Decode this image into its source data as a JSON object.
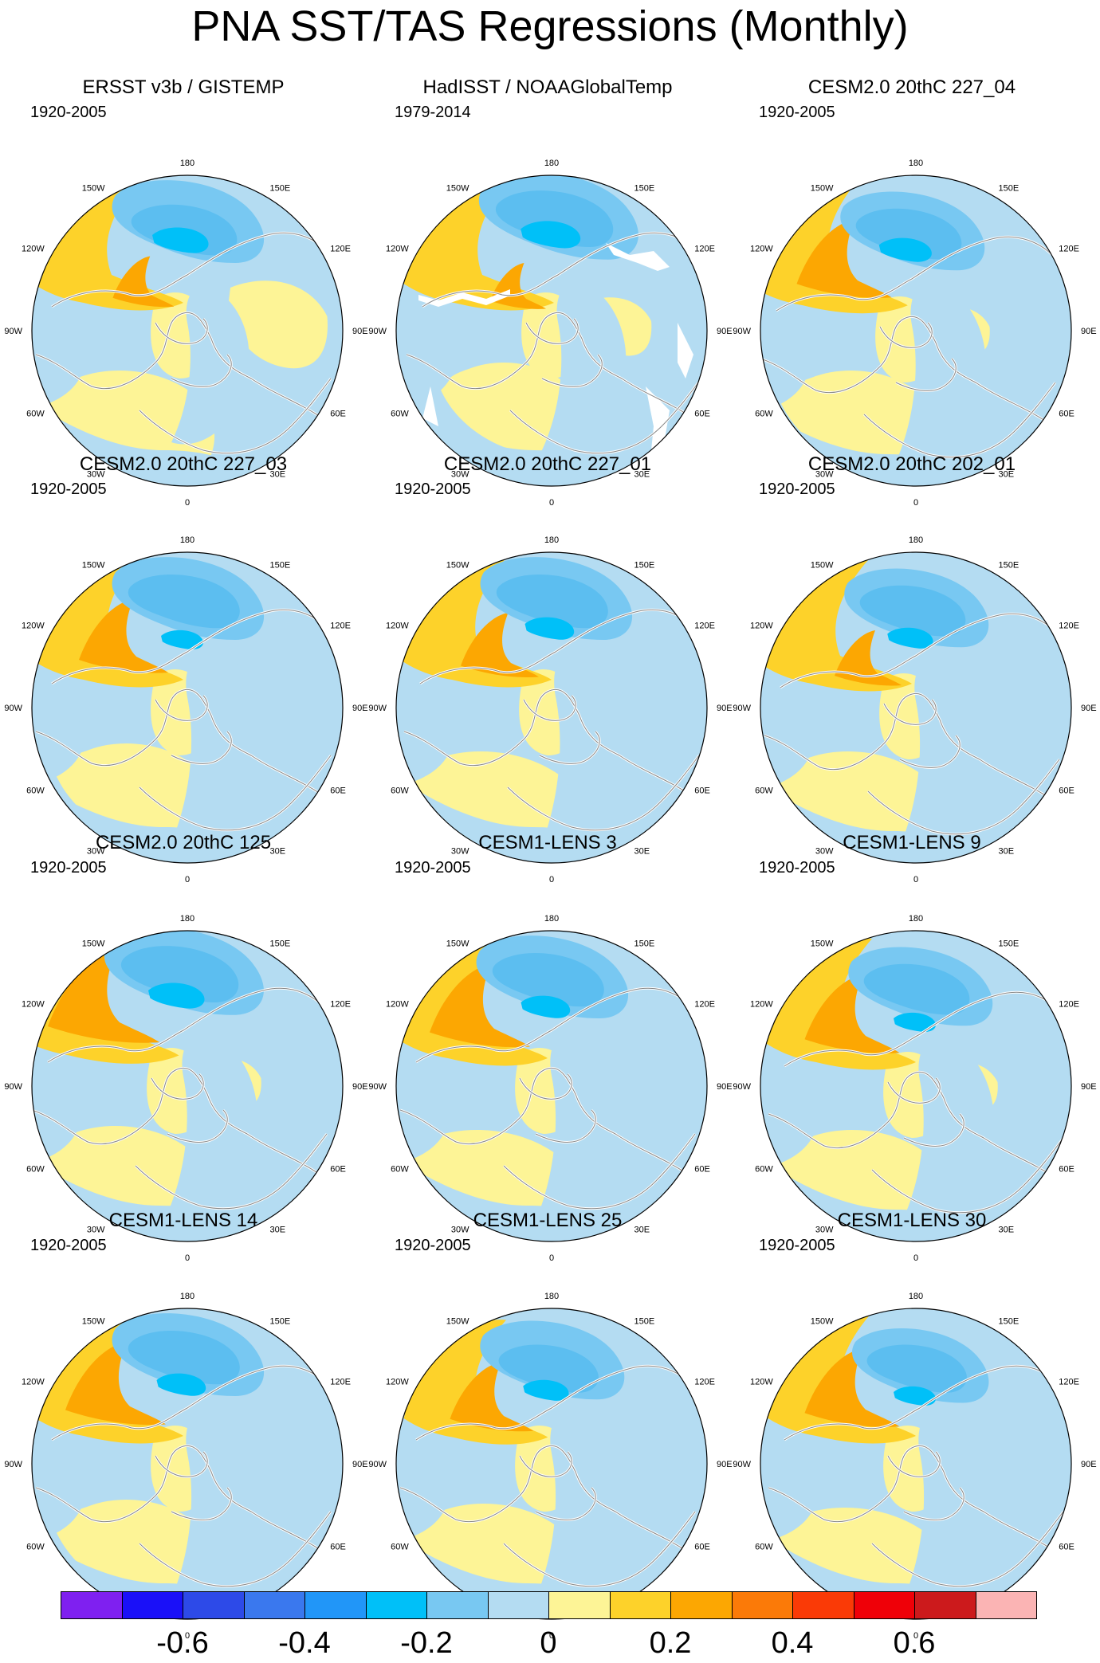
{
  "title": "PNA SST/TAS Regressions (Monthly)",
  "longitude_labels": {
    "deg180": "180",
    "deg150E": "150E",
    "deg120E": "120E",
    "deg90E": "90E",
    "deg60E": "60E",
    "deg30E": "30E",
    "deg0": "0",
    "deg30W": "30W",
    "deg60W": "60W",
    "deg90W": "90W",
    "deg120W": "120W",
    "deg150W": "150W"
  },
  "panels": [
    {
      "title": "ERSST v3b / GISTEMP",
      "period": "1920-2005"
    },
    {
      "title": "HadISST / NOAAGlobalTemp",
      "period": "1979-2014"
    },
    {
      "title": "CESM2.0 20thC 227_04",
      "period": "1920-2005"
    },
    {
      "title": "CESM2.0 20thC 227_03",
      "period": "1920-2005"
    },
    {
      "title": "CESM2.0 20thC 227_01",
      "period": "1920-2005"
    },
    {
      "title": "CESM2.0 20thC 202_01",
      "period": "1920-2005"
    },
    {
      "title": "CESM2.0 20thC 125",
      "period": "1920-2005"
    },
    {
      "title": "CESM1-LENS 3",
      "period": "1920-2005"
    },
    {
      "title": "CESM1-LENS 9",
      "period": "1920-2005"
    },
    {
      "title": "CESM1-LENS 14",
      "period": "1920-2005"
    },
    {
      "title": "CESM1-LENS 25",
      "period": "1920-2005"
    },
    {
      "title": "CESM1-LENS 30",
      "period": "1920-2005"
    }
  ],
  "colorbar": {
    "colors": [
      "#7f20f0",
      "#1a10f8",
      "#2d4ae8",
      "#3a78ee",
      "#2196f8",
      "#00c0f8",
      "#78c8f2",
      "#b4dcf2",
      "#fdf496",
      "#fdd22a",
      "#fca702",
      "#fb7a08",
      "#fa3a06",
      "#ef0008",
      "#cc1a1c",
      "#fbb4b4"
    ],
    "tick_labels": [
      "-0.6",
      "-0.4",
      "-0.2",
      "0",
      "0.2",
      "0.4",
      "0.6"
    ]
  },
  "palette": {
    "neg_light": "#b4dcf2",
    "neg_mid": "#78c8f2",
    "neg_strong": "#00c0f8",
    "pos_light": "#fdf496",
    "pos_mid": "#fdd22a",
    "pos_strong": "#fca702",
    "coast": "#888888",
    "coast_white": "#ffffff"
  }
}
